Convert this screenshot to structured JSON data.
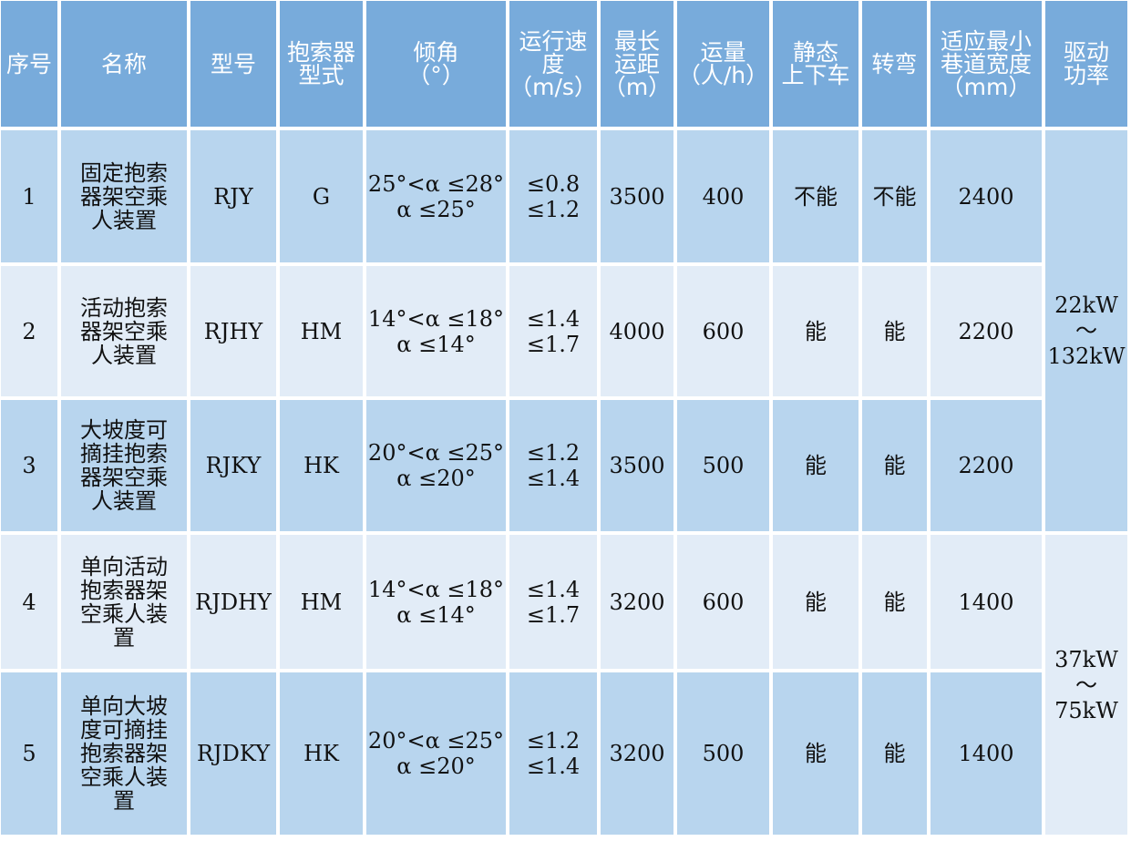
{
  "colors": {
    "header": "#78abdb",
    "row_dark": "#b8d5ee",
    "row_light": "#e2ecf7",
    "header_text": "#ffffff"
  },
  "headers": [
    "序号",
    "名称",
    "型号",
    "抱索器\n型式",
    "倾角\n（°）",
    "运行速\n度\n（m/s）",
    "最长\n运距\n（m）",
    "运量\n（人/h）",
    "静态\n上下车",
    "转弯",
    "适应最小\n巷道宽度\n（mm）",
    "驱动\n功率"
  ],
  "rows": [
    {
      "no": "1",
      "name": "固定抱索\n器架空乘\n人装置",
      "model": "RJY",
      "grip": "G",
      "angle": "25°<α ≤28°\nα ≤25°",
      "speed": "≤0.8\n≤1.2",
      "distance": "3500",
      "capacity": "400",
      "static": "不能",
      "turn": "不能",
      "width": "2400"
    },
    {
      "no": "2",
      "name": "活动抱索\n器架空乘\n人装置",
      "model": "RJHY",
      "grip": "HM",
      "angle": "14°<α ≤18°\nα ≤14°",
      "speed": "≤1.4\n≤1.7",
      "distance": "4000",
      "capacity": "600",
      "static": "能",
      "turn": "能",
      "width": "2200"
    },
    {
      "no": "3",
      "name": "大坡度可\n摘挂抱索\n器架空乘\n人装置",
      "model": "RJKY",
      "grip": "HK",
      "angle": "20°<α ≤25°\nα ≤20°",
      "speed": "≤1.2\n≤1.4",
      "distance": "3500",
      "capacity": "500",
      "static": "能",
      "turn": "能",
      "width": "2200"
    },
    {
      "no": "4",
      "name": "单向活动\n抱索器架\n空乘人装\n置",
      "model": "RJDHY",
      "grip": "HM",
      "angle": "14°<α ≤18°\nα ≤14°",
      "speed": "≤1.4\n≤1.7",
      "distance": "3200",
      "capacity": "600",
      "static": "能",
      "turn": "能",
      "width": "1400"
    },
    {
      "no": "5",
      "name": "单向大坡\n度可摘挂\n抱索器架\n空乘人装\n置",
      "model": "RJDKY",
      "grip": "HK",
      "angle": "20°<α ≤25°\nα ≤20°",
      "speed": "≤1.2\n≤1.4",
      "distance": "3200",
      "capacity": "500",
      "static": "能",
      "turn": "能",
      "width": "1400"
    }
  ],
  "power": [
    "22kW\n～\n132kW",
    "37kW\n～\n75kW"
  ]
}
